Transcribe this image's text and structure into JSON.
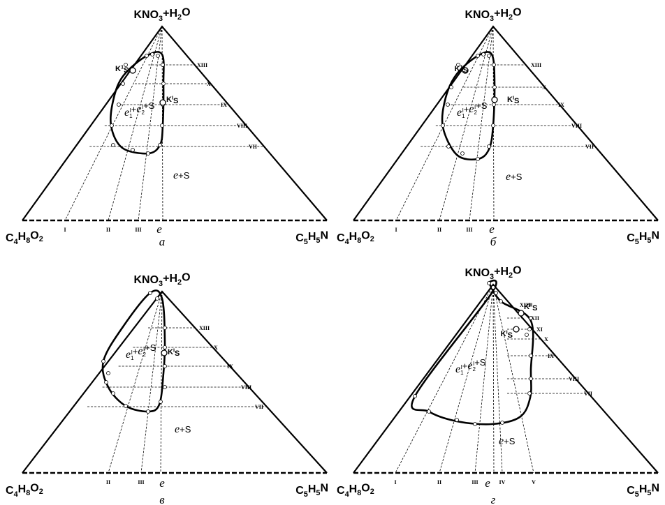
{
  "panels": [
    {
      "caption": "а",
      "apex_top": [
        "KNO",
        "3",
        "+H",
        "2",
        "O"
      ],
      "apex_left": [
        "C",
        "4",
        "H",
        "8",
        "O",
        "2"
      ],
      "apex_right": [
        "C",
        "5",
        "H",
        "5",
        "N"
      ],
      "base_numerals": [
        "I",
        "II",
        "III"
      ],
      "side_numerals": [
        "XIII",
        "X",
        "IX",
        "VIII",
        "VII"
      ],
      "points": [
        [
          "K",
          "1",
          "S"
        ],
        [
          "K",
          "I",
          "S"
        ]
      ],
      "region_inner": [
        "e",
        "1",
        "I",
        "+",
        "e",
        "2",
        "I",
        "+S"
      ],
      "region_outer": [
        "e",
        "+S"
      ],
      "base_e": "e"
    },
    {
      "caption": "б",
      "apex_top": [
        "KNO",
        "3",
        "+H",
        "2",
        "O"
      ],
      "apex_left": [
        "C",
        "4",
        "H",
        "8",
        "O",
        "2"
      ],
      "apex_right": [
        "C",
        "5",
        "H",
        "5",
        "N"
      ],
      "base_numerals": [
        "I",
        "II",
        "III"
      ],
      "side_numerals": [
        "XIII",
        "X",
        "IX",
        "VIII",
        "VII"
      ],
      "points": [
        [
          "K",
          "1",
          "S"
        ],
        [
          "K",
          "I",
          "S"
        ]
      ],
      "region_inner": [
        "e",
        "1",
        "I",
        "+",
        "e",
        "2",
        "I",
        "+S"
      ],
      "region_outer": [
        "e",
        "+S"
      ],
      "base_e": "e"
    },
    {
      "caption": "в",
      "apex_top": [
        "KNO",
        "3",
        "+H",
        "2",
        "O"
      ],
      "apex_left": [
        "C",
        "4",
        "H",
        "8",
        "O",
        "2"
      ],
      "apex_right": [
        "C",
        "5",
        "H",
        "5",
        "N"
      ],
      "base_numerals": [
        "II",
        "III"
      ],
      "side_numerals": [
        "XIII",
        "X",
        "IX",
        "VIII",
        "VII"
      ],
      "points": [
        [
          "K",
          "I",
          "S"
        ]
      ],
      "region_inner": [
        "e",
        "1",
        "I",
        "+",
        "e",
        "2",
        "I",
        "+S"
      ],
      "region_outer": [
        "e",
        "+S"
      ],
      "base_e": "e"
    },
    {
      "caption": "г",
      "apex_top": [
        "KNO",
        "3",
        "+H",
        "2",
        "O"
      ],
      "apex_left": [
        "C",
        "4",
        "H",
        "8",
        "O",
        "2"
      ],
      "apex_right": [
        "C",
        "5",
        "H",
        "5",
        "N"
      ],
      "base_numerals": [
        "I",
        "II",
        "III",
        "IV",
        "V"
      ],
      "side_numerals": [
        "XIII",
        "XII",
        "XI",
        "X",
        "IX",
        "VIII",
        "VII"
      ],
      "points": [
        [
          "K",
          "II",
          "S"
        ],
        [
          "K",
          "I",
          "S"
        ]
      ],
      "region_inner": [
        "e",
        "1",
        "I",
        "+",
        "e",
        "2",
        "I",
        "+S"
      ],
      "region_outer": [
        "e",
        "+S"
      ],
      "base_e": "e"
    }
  ]
}
